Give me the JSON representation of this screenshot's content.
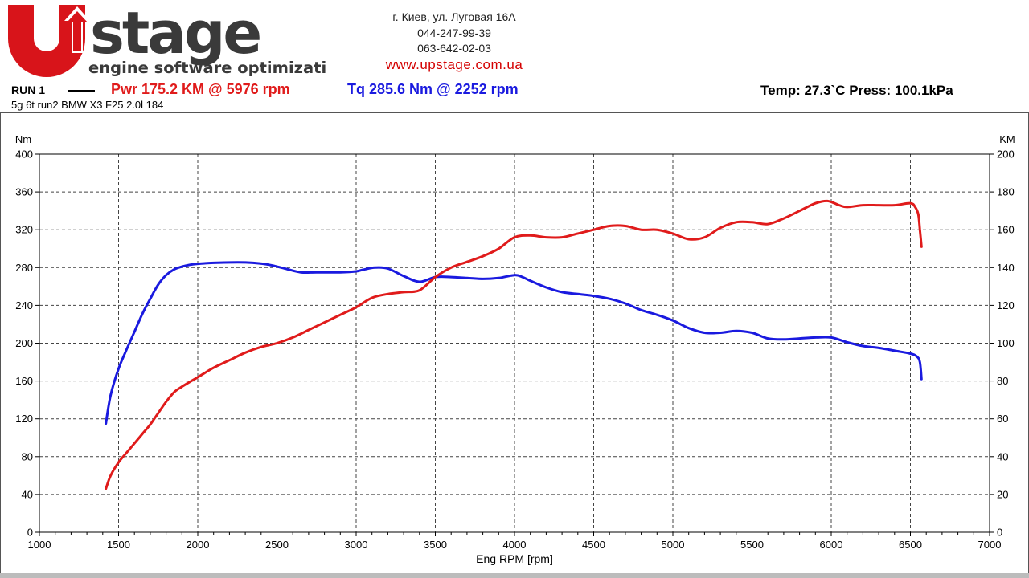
{
  "brand": {
    "logo_word": "Upstage",
    "logo_tagline": "engine software optimization",
    "colors": {
      "red": "#d8141a",
      "dark": "#3a3a3a"
    }
  },
  "contact": {
    "address": "г. Киев, ул. Луговая 16А",
    "phone1": "044-247-99-39",
    "phone2": "063-642-02-03",
    "website": "www.upstage.com.ua"
  },
  "run": {
    "label": "RUN 1",
    "power_summary": "Pwr  175.2 KM @ 5976 rpm",
    "torque_summary": "Tq 285.6 Nm @ 2252 rpm",
    "conditions": "Temp: 27.3`C    Press: 100.1kPa",
    "subtitle": "5g 6t run2 BMW X3 F25 2.0l 184"
  },
  "chart_data": {
    "type": "line",
    "xlabel": "Eng RPM [rpm]",
    "ylabel_left": "Nm",
    "ylabel_right": "KM",
    "xlim": [
      1000,
      7000
    ],
    "ylim_left": [
      0,
      400
    ],
    "ylim_right": [
      0,
      200
    ],
    "x_ticks": [
      1000,
      1500,
      2000,
      2500,
      3000,
      3500,
      4000,
      4500,
      5000,
      5500,
      6000,
      6500,
      7000
    ],
    "y_ticks_left": [
      0,
      40,
      80,
      120,
      160,
      200,
      240,
      280,
      320,
      360,
      400
    ],
    "y_ticks_right": [
      0,
      20,
      40,
      60,
      80,
      100,
      120,
      140,
      160,
      180,
      200
    ],
    "grid": true,
    "series": [
      {
        "name": "Tq",
        "axis": "left",
        "color": "#1a1adf",
        "x": [
          1420,
          1450,
          1500,
          1550,
          1600,
          1650,
          1700,
          1750,
          1800,
          1850,
          1900,
          1950,
          2000,
          2100,
          2252,
          2350,
          2450,
          2550,
          2650,
          2750,
          2900,
          3000,
          3050,
          3120,
          3200,
          3300,
          3400,
          3500,
          3600,
          3700,
          3800,
          3900,
          4000,
          4050,
          4100,
          4200,
          4300,
          4400,
          4500,
          4600,
          4700,
          4800,
          4900,
          5000,
          5100,
          5200,
          5300,
          5400,
          5500,
          5600,
          5700,
          5800,
          5900,
          6000,
          6100,
          6200,
          6300,
          6400,
          6500,
          6540,
          6560,
          6570
        ],
        "y": [
          115,
          145,
          173,
          193,
          212,
          231,
          247,
          262,
          272,
          278,
          281,
          283,
          284,
          285,
          285.6,
          285,
          283,
          279,
          275,
          275,
          275,
          276,
          278,
          280,
          279,
          271,
          265,
          270,
          270,
          269,
          268,
          269,
          272,
          270,
          266,
          259,
          254,
          252,
          250,
          247,
          242,
          235,
          230,
          224,
          216,
          211,
          211,
          213,
          211,
          205,
          204,
          205,
          206,
          206,
          201,
          197,
          195,
          192,
          189,
          186,
          180,
          162
        ]
      },
      {
        "name": "Pwr",
        "axis": "right",
        "color": "#e01b1b",
        "x": [
          1420,
          1450,
          1500,
          1550,
          1600,
          1650,
          1700,
          1750,
          1800,
          1850,
          1900,
          2000,
          2100,
          2200,
          2300,
          2400,
          2500,
          2600,
          2700,
          2800,
          2900,
          3000,
          3100,
          3200,
          3300,
          3400,
          3500,
          3600,
          3700,
          3800,
          3900,
          4000,
          4100,
          4200,
          4300,
          4400,
          4500,
          4600,
          4700,
          4800,
          4900,
          5000,
          5100,
          5200,
          5300,
          5400,
          5500,
          5600,
          5700,
          5800,
          5900,
          5976,
          6050,
          6100,
          6200,
          6300,
          6400,
          6500,
          6530,
          6550,
          6560,
          6570
        ],
        "y": [
          23,
          30,
          37,
          42,
          47,
          52,
          57,
          63,
          69,
          74,
          77,
          82,
          87,
          91,
          95,
          98,
          100,
          103,
          107,
          111,
          115,
          119,
          124,
          126,
          127,
          128,
          135,
          140,
          143,
          146,
          150,
          156,
          157,
          156,
          156,
          158,
          160,
          162,
          162,
          160,
          160,
          158,
          155,
          156,
          161,
          164,
          164,
          163,
          166,
          170,
          174,
          175.2,
          173,
          172,
          173,
          173,
          173,
          174,
          172,
          168,
          160,
          151
        ]
      }
    ]
  }
}
